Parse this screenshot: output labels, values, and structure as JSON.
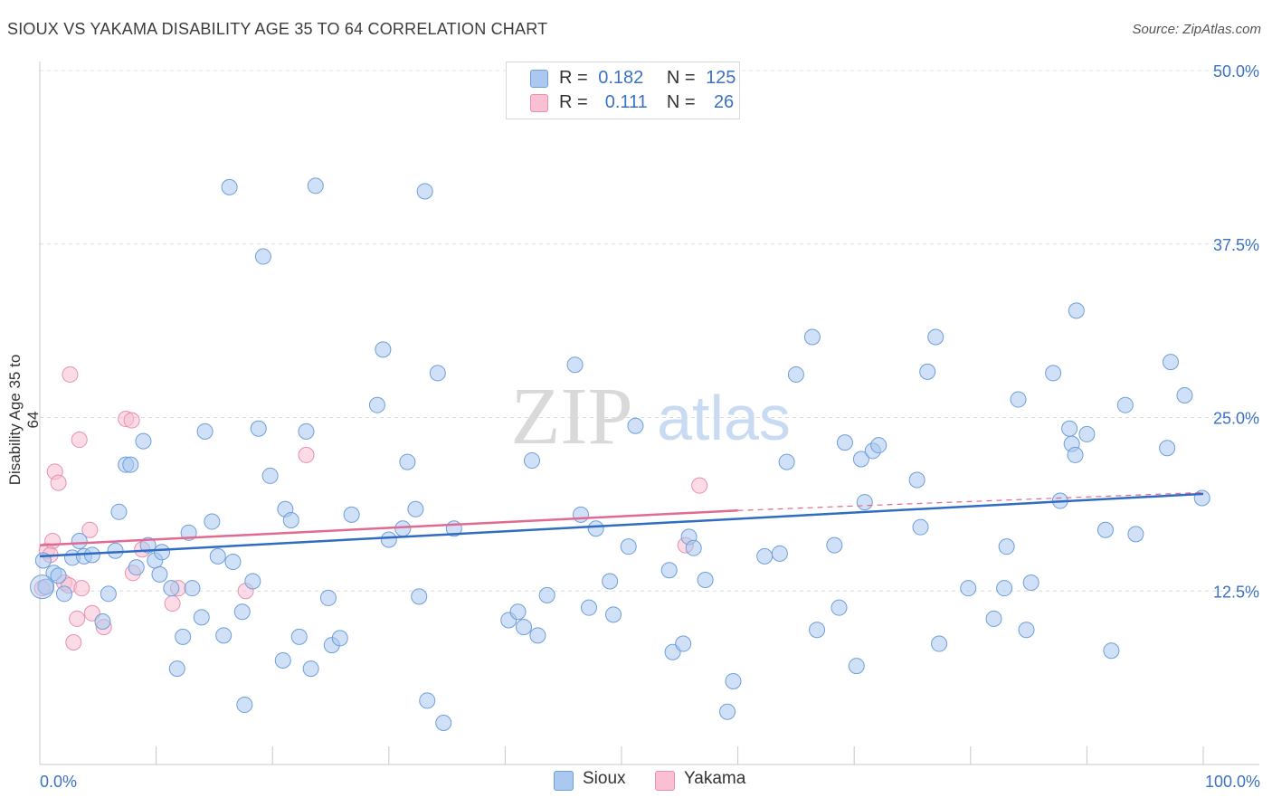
{
  "title": "SIOUX VS YAKAMA DISABILITY AGE 35 TO 64 CORRELATION CHART",
  "source": "Source: ZipAtlas.com",
  "watermark": {
    "zip": "ZIP",
    "atlas": "atlas"
  },
  "legend": {
    "r_label": "R =",
    "n_label": "N =",
    "sioux": {
      "r": "0.182",
      "n": "125"
    },
    "yakama": {
      "r": "0.111",
      "n": "26"
    }
  },
  "bottom_legend": {
    "sioux": "Sioux",
    "yakama": "Yakama"
  },
  "colors": {
    "sioux_fill": "#aac8f0",
    "sioux_stroke": "#6f9fd8",
    "sioux_line": "#2f6cc4",
    "yakama_fill": "#f8c0d2",
    "yakama_stroke": "#e890ad",
    "yakama_line": "#e06a92",
    "axis_text": "#3a72c4"
  },
  "chart_data": {
    "type": "scatter",
    "title": "SIOUX VS YAKAMA DISABILITY AGE 35 TO 64 CORRELATION CHART",
    "xlabel": "",
    "ylabel": "Disability Age 35 to 64",
    "x_tick_labels": [
      "0.0%",
      "100.0%"
    ],
    "y_tick_labels": [
      "12.5%",
      "25.0%",
      "37.5%",
      "50.0%"
    ],
    "y_ticks": [
      12.5,
      25.0,
      37.5,
      50.0
    ],
    "xlim": [
      0,
      100
    ],
    "ylim": [
      0,
      50
    ],
    "grid": true,
    "series": [
      {
        "name": "Sioux",
        "r": 0.182,
        "n": 125,
        "trend": [
          [
            0,
            15.0
          ],
          [
            100,
            19.5
          ]
        ],
        "points": [
          [
            0.3,
            14.7
          ],
          [
            0.5,
            12.8
          ],
          [
            1.2,
            13.8
          ],
          [
            1.6,
            13.6
          ],
          [
            2.1,
            12.3
          ],
          [
            2.8,
            14.9
          ],
          [
            3.4,
            16.1
          ],
          [
            3.8,
            15.0
          ],
          [
            4.5,
            15.1
          ],
          [
            5.4,
            10.3
          ],
          [
            5.9,
            12.3
          ],
          [
            6.5,
            15.4
          ],
          [
            6.8,
            18.2
          ],
          [
            7.4,
            21.6
          ],
          [
            7.8,
            21.6
          ],
          [
            8.3,
            14.2
          ],
          [
            8.9,
            23.3
          ],
          [
            9.3,
            15.8
          ],
          [
            9.9,
            14.7
          ],
          [
            10.3,
            13.7
          ],
          [
            10.5,
            15.3
          ],
          [
            11.3,
            12.7
          ],
          [
            11.8,
            6.9
          ],
          [
            12.3,
            9.2
          ],
          [
            12.8,
            16.7
          ],
          [
            13.1,
            12.7
          ],
          [
            13.9,
            10.6
          ],
          [
            14.2,
            24.0
          ],
          [
            14.8,
            17.5
          ],
          [
            15.3,
            15.0
          ],
          [
            15.8,
            9.3
          ],
          [
            16.3,
            41.6
          ],
          [
            16.6,
            14.6
          ],
          [
            17.4,
            11.0
          ],
          [
            17.6,
            4.3
          ],
          [
            18.3,
            13.2
          ],
          [
            18.8,
            24.2
          ],
          [
            19.2,
            36.6
          ],
          [
            19.8,
            20.8
          ],
          [
            20.9,
            7.5
          ],
          [
            21.1,
            18.4
          ],
          [
            21.6,
            17.6
          ],
          [
            22.3,
            9.2
          ],
          [
            22.9,
            24.0
          ],
          [
            23.3,
            6.9
          ],
          [
            23.7,
            41.7
          ],
          [
            24.8,
            12.0
          ],
          [
            25.1,
            8.6
          ],
          [
            25.8,
            9.1
          ],
          [
            26.8,
            18.0
          ],
          [
            29.0,
            25.9
          ],
          [
            29.5,
            29.9
          ],
          [
            30.0,
            16.2
          ],
          [
            31.2,
            17.0
          ],
          [
            31.6,
            21.8
          ],
          [
            32.3,
            18.4
          ],
          [
            32.6,
            12.1
          ],
          [
            33.1,
            41.3
          ],
          [
            33.3,
            4.6
          ],
          [
            34.2,
            28.2
          ],
          [
            34.7,
            3.0
          ],
          [
            35.6,
            17.0
          ],
          [
            40.3,
            10.4
          ],
          [
            41.1,
            11.0
          ],
          [
            41.6,
            9.9
          ],
          [
            42.3,
            21.9
          ],
          [
            42.8,
            9.3
          ],
          [
            43.6,
            12.2
          ],
          [
            46.0,
            28.8
          ],
          [
            46.5,
            18.0
          ],
          [
            47.2,
            11.3
          ],
          [
            47.8,
            17.0
          ],
          [
            49.0,
            13.2
          ],
          [
            49.3,
            10.8
          ],
          [
            50.6,
            15.7
          ],
          [
            51.2,
            24.4
          ],
          [
            54.1,
            14.0
          ],
          [
            54.4,
            8.1
          ],
          [
            55.3,
            8.7
          ],
          [
            55.8,
            16.4
          ],
          [
            56.2,
            15.6
          ],
          [
            57.2,
            13.3
          ],
          [
            59.1,
            3.8
          ],
          [
            59.6,
            6.0
          ],
          [
            62.3,
            15.0
          ],
          [
            63.6,
            15.2
          ],
          [
            64.2,
            21.8
          ],
          [
            65.0,
            28.1
          ],
          [
            66.4,
            30.8
          ],
          [
            66.8,
            9.7
          ],
          [
            68.3,
            15.8
          ],
          [
            68.7,
            11.3
          ],
          [
            69.2,
            23.2
          ],
          [
            70.2,
            7.1
          ],
          [
            70.6,
            22.0
          ],
          [
            70.9,
            18.9
          ],
          [
            71.6,
            22.6
          ],
          [
            72.1,
            23.0
          ],
          [
            75.4,
            20.5
          ],
          [
            75.7,
            17.1
          ],
          [
            76.3,
            28.3
          ],
          [
            77.0,
            30.8
          ],
          [
            77.3,
            8.7
          ],
          [
            79.8,
            12.7
          ],
          [
            82.0,
            10.5
          ],
          [
            82.9,
            12.7
          ],
          [
            83.1,
            15.7
          ],
          [
            84.1,
            26.3
          ],
          [
            84.8,
            9.7
          ],
          [
            85.2,
            13.1
          ],
          [
            87.1,
            28.2
          ],
          [
            87.7,
            19.0
          ],
          [
            88.5,
            24.2
          ],
          [
            88.7,
            23.1
          ],
          [
            89.0,
            22.3
          ],
          [
            89.1,
            32.7
          ],
          [
            90.0,
            23.8
          ],
          [
            91.6,
            16.9
          ],
          [
            92.1,
            8.2
          ],
          [
            93.3,
            25.9
          ],
          [
            94.2,
            16.6
          ],
          [
            96.9,
            22.8
          ],
          [
            97.2,
            29.0
          ],
          [
            98.4,
            26.6
          ],
          [
            99.9,
            19.2
          ]
        ]
      },
      {
        "name": "Yakama",
        "r": 0.111,
        "n": 26,
        "trend": [
          [
            0,
            15.8
          ],
          [
            60,
            18.3
          ]
        ],
        "dashed_extension": [
          [
            60,
            18.3
          ],
          [
            100,
            19.6
          ]
        ],
        "points": [
          [
            0.2,
            12.7
          ],
          [
            0.6,
            15.4
          ],
          [
            1.1,
            16.1
          ],
          [
            1.3,
            21.1
          ],
          [
            1.6,
            20.3
          ],
          [
            2.1,
            13.1
          ],
          [
            2.5,
            12.9
          ],
          [
            2.6,
            28.1
          ],
          [
            2.9,
            8.8
          ],
          [
            3.2,
            10.5
          ],
          [
            3.4,
            23.4
          ],
          [
            3.6,
            12.7
          ],
          [
            4.3,
            16.9
          ],
          [
            4.5,
            10.9
          ],
          [
            5.5,
            9.9
          ],
          [
            7.4,
            24.9
          ],
          [
            7.9,
            24.8
          ],
          [
            8.0,
            13.8
          ],
          [
            8.8,
            15.5
          ],
          [
            11.4,
            11.6
          ],
          [
            11.9,
            12.7
          ],
          [
            17.7,
            12.5
          ],
          [
            22.9,
            22.3
          ],
          [
            55.5,
            15.8
          ],
          [
            56.7,
            20.1
          ],
          [
            0.9,
            15.1
          ]
        ]
      }
    ]
  }
}
